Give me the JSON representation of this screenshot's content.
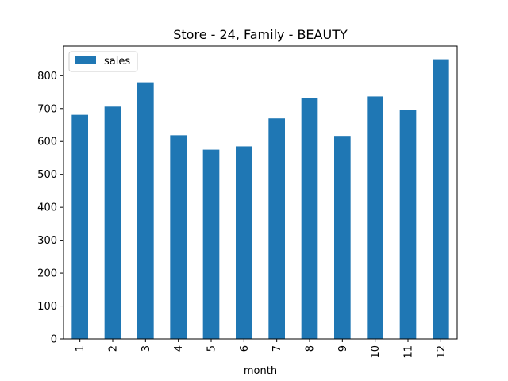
{
  "chart_data": {
    "type": "bar",
    "title": "Store - 24, Family - BEAUTY",
    "xlabel": "month",
    "ylabel": "",
    "categories": [
      "1",
      "2",
      "3",
      "4",
      "5",
      "6",
      "7",
      "8",
      "9",
      "10",
      "11",
      "12"
    ],
    "series": [
      {
        "name": "sales",
        "color": "#1f77b4",
        "values": [
          681,
          706,
          780,
          619,
          575,
          585,
          670,
          732,
          617,
          737,
          696,
          850
        ]
      }
    ],
    "ylim": [
      0,
      890
    ],
    "yticks": [
      0,
      100,
      200,
      300,
      400,
      500,
      600,
      700,
      800
    ],
    "grid": false,
    "legend_position": "top-left",
    "x_tick_rotation": "vertical"
  }
}
